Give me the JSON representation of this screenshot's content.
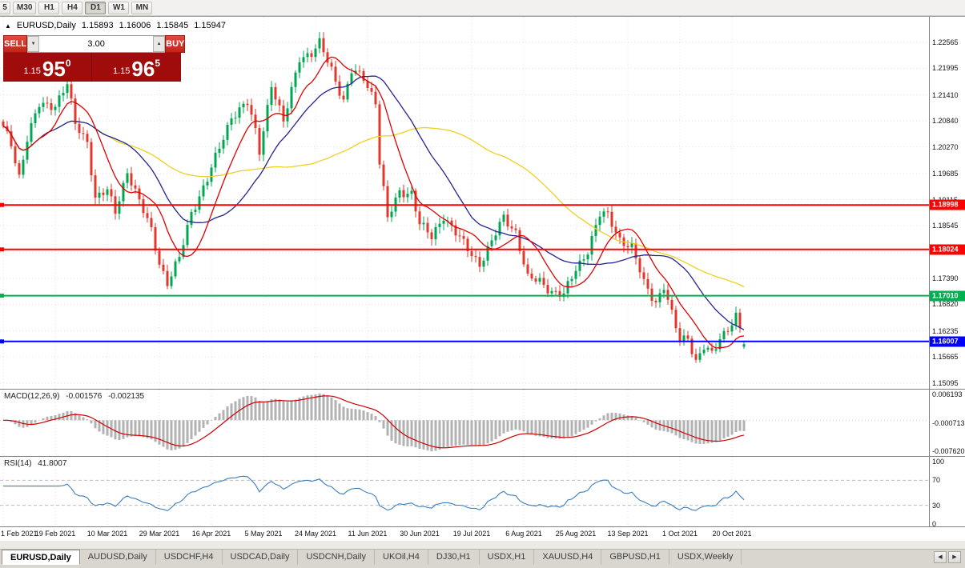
{
  "toolbar": {
    "timeframes": [
      "5",
      "M30",
      "H1",
      "H4",
      "D1",
      "W1",
      "MN"
    ],
    "active": "D1"
  },
  "chart_header": {
    "symbol": "EURUSD,Daily",
    "open": "1.15893",
    "high": "1.16006",
    "low": "1.15845",
    "close": "1.15947"
  },
  "trade_panel": {
    "sell_label": "SELL",
    "buy_label": "BUY",
    "volume": "3.00",
    "sell_price": {
      "small": "1.15",
      "big": "95",
      "sup": "0"
    },
    "buy_price": {
      "small": "1.15",
      "big": "96",
      "sup": "5"
    }
  },
  "macd_panel": {
    "label": "MACD(12,26,9)",
    "value_main": "-0.001576",
    "value_signal": "-0.002135",
    "axis_labels": [
      "0.006193",
      "-0.000713",
      "-0.007620"
    ]
  },
  "rsi_panel": {
    "label": "RSI(14)",
    "value": "41.8007",
    "axis_labels": [
      "100",
      "70",
      "30",
      "0"
    ]
  },
  "tabs": {
    "items": [
      "EURUSD,Daily",
      "AUDUSD,Daily",
      "USDCHF,H4",
      "USDCAD,Daily",
      "USDCNH,Daily",
      "UKOil,H4",
      "DJ30,H1",
      "USDX,H1",
      "XAUUSD,H4",
      "GBPUSD,H1",
      "USDX,Weekly"
    ],
    "active": "EURUSD,Daily"
  },
  "icons": {
    "symbol_marker": "▲",
    "spin_up": "▲",
    "spin_down": "▼",
    "tabs_scroll_left": "◀",
    "tabs_scroll_right": "▶"
  },
  "colors": {
    "candle_up": "#00a650",
    "candle_down": "#e0382d",
    "ma_fast": "#e00000",
    "ma_mid": "#24248f",
    "ma_slow": "#f0cf20",
    "hline_red": "#ff0000",
    "hline_green": "#00b050",
    "hline_blue": "#0000ff",
    "macd_histogram": "#b2b2b2",
    "macd_signal": "#cc0000",
    "rsi_line": "#3a7ebf",
    "trade_button": "#d42a22",
    "big_price_bg": "#a00c0c"
  },
  "chart_data": {
    "type": "candlestick",
    "symbol": "EURUSD",
    "timeframe": "Daily",
    "price_top": 1.2312,
    "price_bottom": 1.1497,
    "bar_spacing_px": 5,
    "num_bars": 186,
    "label_step": 13,
    "x_labels": [
      "1 Feb 2021",
      "19 Feb 2021",
      "10 Mar 2021",
      "29 Mar 2021",
      "16 Apr 2021",
      "5 May 2021",
      "24 May 2021",
      "11 Jun 2021",
      "30 Jun 2021",
      "19 Jul 2021",
      "6 Aug 2021",
      "25 Aug 2021",
      "13 Sep 2021",
      "1 Oct 2021",
      "20 Oct 2021"
    ],
    "y_ticks": [
      "1.22565",
      "1.21995",
      "1.21410",
      "1.20840",
      "1.20270",
      "1.19685",
      "1.19115",
      "1.18545",
      "1.17960",
      "1.17390",
      "1.16820",
      "1.16235",
      "1.15665",
      "1.15095"
    ],
    "hlines": [
      {
        "price": 1.18998,
        "label": "1.18998",
        "color": "#ff0000"
      },
      {
        "price": 1.18024,
        "label": "1.18024",
        "color": "#ff0000"
      },
      {
        "price": 1.1701,
        "label": "1.17010",
        "color": "#00b050"
      },
      {
        "price": 1.16007,
        "label": "1.16007",
        "color": "#0000ff"
      }
    ],
    "moving_averages": [
      {
        "period": 60,
        "color": "#f0cf20"
      },
      {
        "period": 24,
        "color": "#24248f"
      },
      {
        "period": 10,
        "color": "#e00000"
      }
    ],
    "last_candle": {
      "open": 1.15893,
      "high": 1.16006,
      "low": 1.15845,
      "close": 1.15947
    },
    "close_waypoints": [
      [
        0,
        1.2068
      ],
      [
        2,
        1.2035
      ],
      [
        4,
        1.1963
      ],
      [
        6,
        1.2045
      ],
      [
        9,
        1.2118
      ],
      [
        13,
        1.212
      ],
      [
        16,
        1.2165
      ],
      [
        18,
        1.2075
      ],
      [
        21,
        1.204
      ],
      [
        23,
        1.1915
      ],
      [
        26,
        1.193
      ],
      [
        28,
        1.1885
      ],
      [
        31,
        1.1975
      ],
      [
        34,
        1.1905
      ],
      [
        37,
        1.1845
      ],
      [
        39,
        1.1775
      ],
      [
        41,
        1.1728
      ],
      [
        44,
        1.1782
      ],
      [
        47,
        1.1885
      ],
      [
        51,
        1.1955
      ],
      [
        54,
        1.2025
      ],
      [
        57,
        1.2095
      ],
      [
        61,
        1.2122
      ],
      [
        63,
        1.206
      ],
      [
        64,
        1.2018
      ],
      [
        67,
        1.2165
      ],
      [
        70,
        1.2078
      ],
      [
        74,
        1.2225
      ],
      [
        77,
        1.223
      ],
      [
        79,
        1.2252
      ],
      [
        82,
        1.2198
      ],
      [
        85,
        1.2128
      ],
      [
        87,
        1.2192
      ],
      [
        90,
        1.2178
      ],
      [
        93,
        1.2128
      ],
      [
        94,
        1.1996
      ],
      [
        96,
        1.1868
      ],
      [
        99,
        1.1928
      ],
      [
        102,
        1.1928
      ],
      [
        104,
        1.1858
      ],
      [
        107,
        1.1828
      ],
      [
        110,
        1.1878
      ],
      [
        113,
        1.1838
      ],
      [
        116,
        1.1802
      ],
      [
        119,
        1.1772
      ],
      [
        122,
        1.1818
      ],
      [
        125,
        1.1872
      ],
      [
        128,
        1.1842
      ],
      [
        131,
        1.1738
      ],
      [
        134,
        1.1732
      ],
      [
        137,
        1.1712
      ],
      [
        140,
        1.1702
      ],
      [
        143,
        1.1758
      ],
      [
        146,
        1.1802
      ],
      [
        149,
        1.1878
      ],
      [
        151,
        1.1876
      ],
      [
        154,
        1.1826
      ],
      [
        157,
        1.1806
      ],
      [
        160,
        1.1728
      ],
      [
        163,
        1.1688
      ],
      [
        165,
        1.1722
      ],
      [
        167,
        1.1658
      ],
      [
        169,
        1.1602
      ],
      [
        171,
        1.1612
      ],
      [
        173,
        1.1558
      ],
      [
        175,
        1.1588
      ],
      [
        177,
        1.157
      ],
      [
        179,
        1.1608
      ],
      [
        181,
        1.1632
      ],
      [
        183,
        1.1656
      ],
      [
        184,
        1.1628
      ],
      [
        185,
        1.15947
      ]
    ]
  },
  "indicators": {
    "macd": {
      "fast": 12,
      "slow": 26,
      "signal": 9,
      "scale_max": 0.006193,
      "scale_min": -0.00762
    },
    "rsi": {
      "period": 14,
      "levels": [
        70,
        30
      ]
    }
  }
}
